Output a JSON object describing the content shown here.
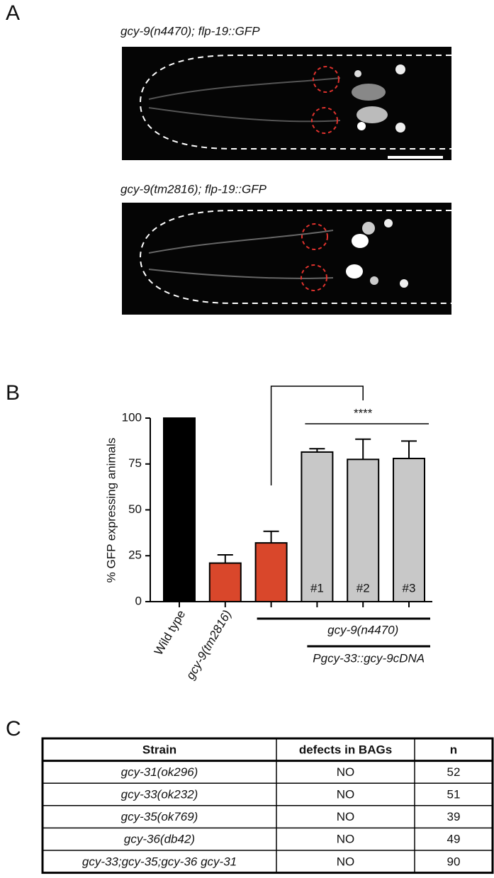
{
  "panels": {
    "a": {
      "label": "A",
      "captions": [
        "gcy-9(n4470); flp-19::GFP",
        "gcy-9(tm2816); flp-19::GFP"
      ]
    },
    "b": {
      "label": "B"
    },
    "c": {
      "label": "C"
    }
  },
  "chart_data": {
    "type": "bar",
    "y_label": "% GFP expressing animals",
    "categories": [
      "Wild type",
      "gcy-9(tm2816)",
      null,
      null,
      null,
      null
    ],
    "values": [
      100,
      21,
      32,
      81.5,
      77.5,
      78
    ],
    "errors": [
      null,
      4.5,
      6.3,
      1.8,
      11,
      9.5
    ],
    "colors": [
      "#000000",
      "#d9472b",
      "#d9472b",
      "#c8c8c8",
      "#c8c8c8",
      "#c8c8c8"
    ],
    "bar_annotations": [
      null,
      null,
      null,
      "#1",
      "#2",
      "#3"
    ],
    "group_labels": [
      "gcy-9(n4470)",
      "Pgcy-33::gcy-9cDNA"
    ],
    "significance": "****",
    "ylim": [
      0,
      100
    ],
    "yticks": [
      0,
      25,
      50,
      75,
      100
    ]
  },
  "table": {
    "header": [
      "Strain",
      "defects in BAGs",
      "n"
    ],
    "rows": [
      [
        "gcy-31(ok296)",
        "NO",
        "52"
      ],
      [
        "gcy-33(ok232)",
        "NO",
        "51"
      ],
      [
        "gcy-35(ok769)",
        "NO",
        "39"
      ],
      [
        "gcy-36(db42)",
        "NO",
        "49"
      ],
      [
        "gcy-33;gcy-35;gcy-36 gcy-31",
        "NO",
        "90"
      ]
    ]
  }
}
